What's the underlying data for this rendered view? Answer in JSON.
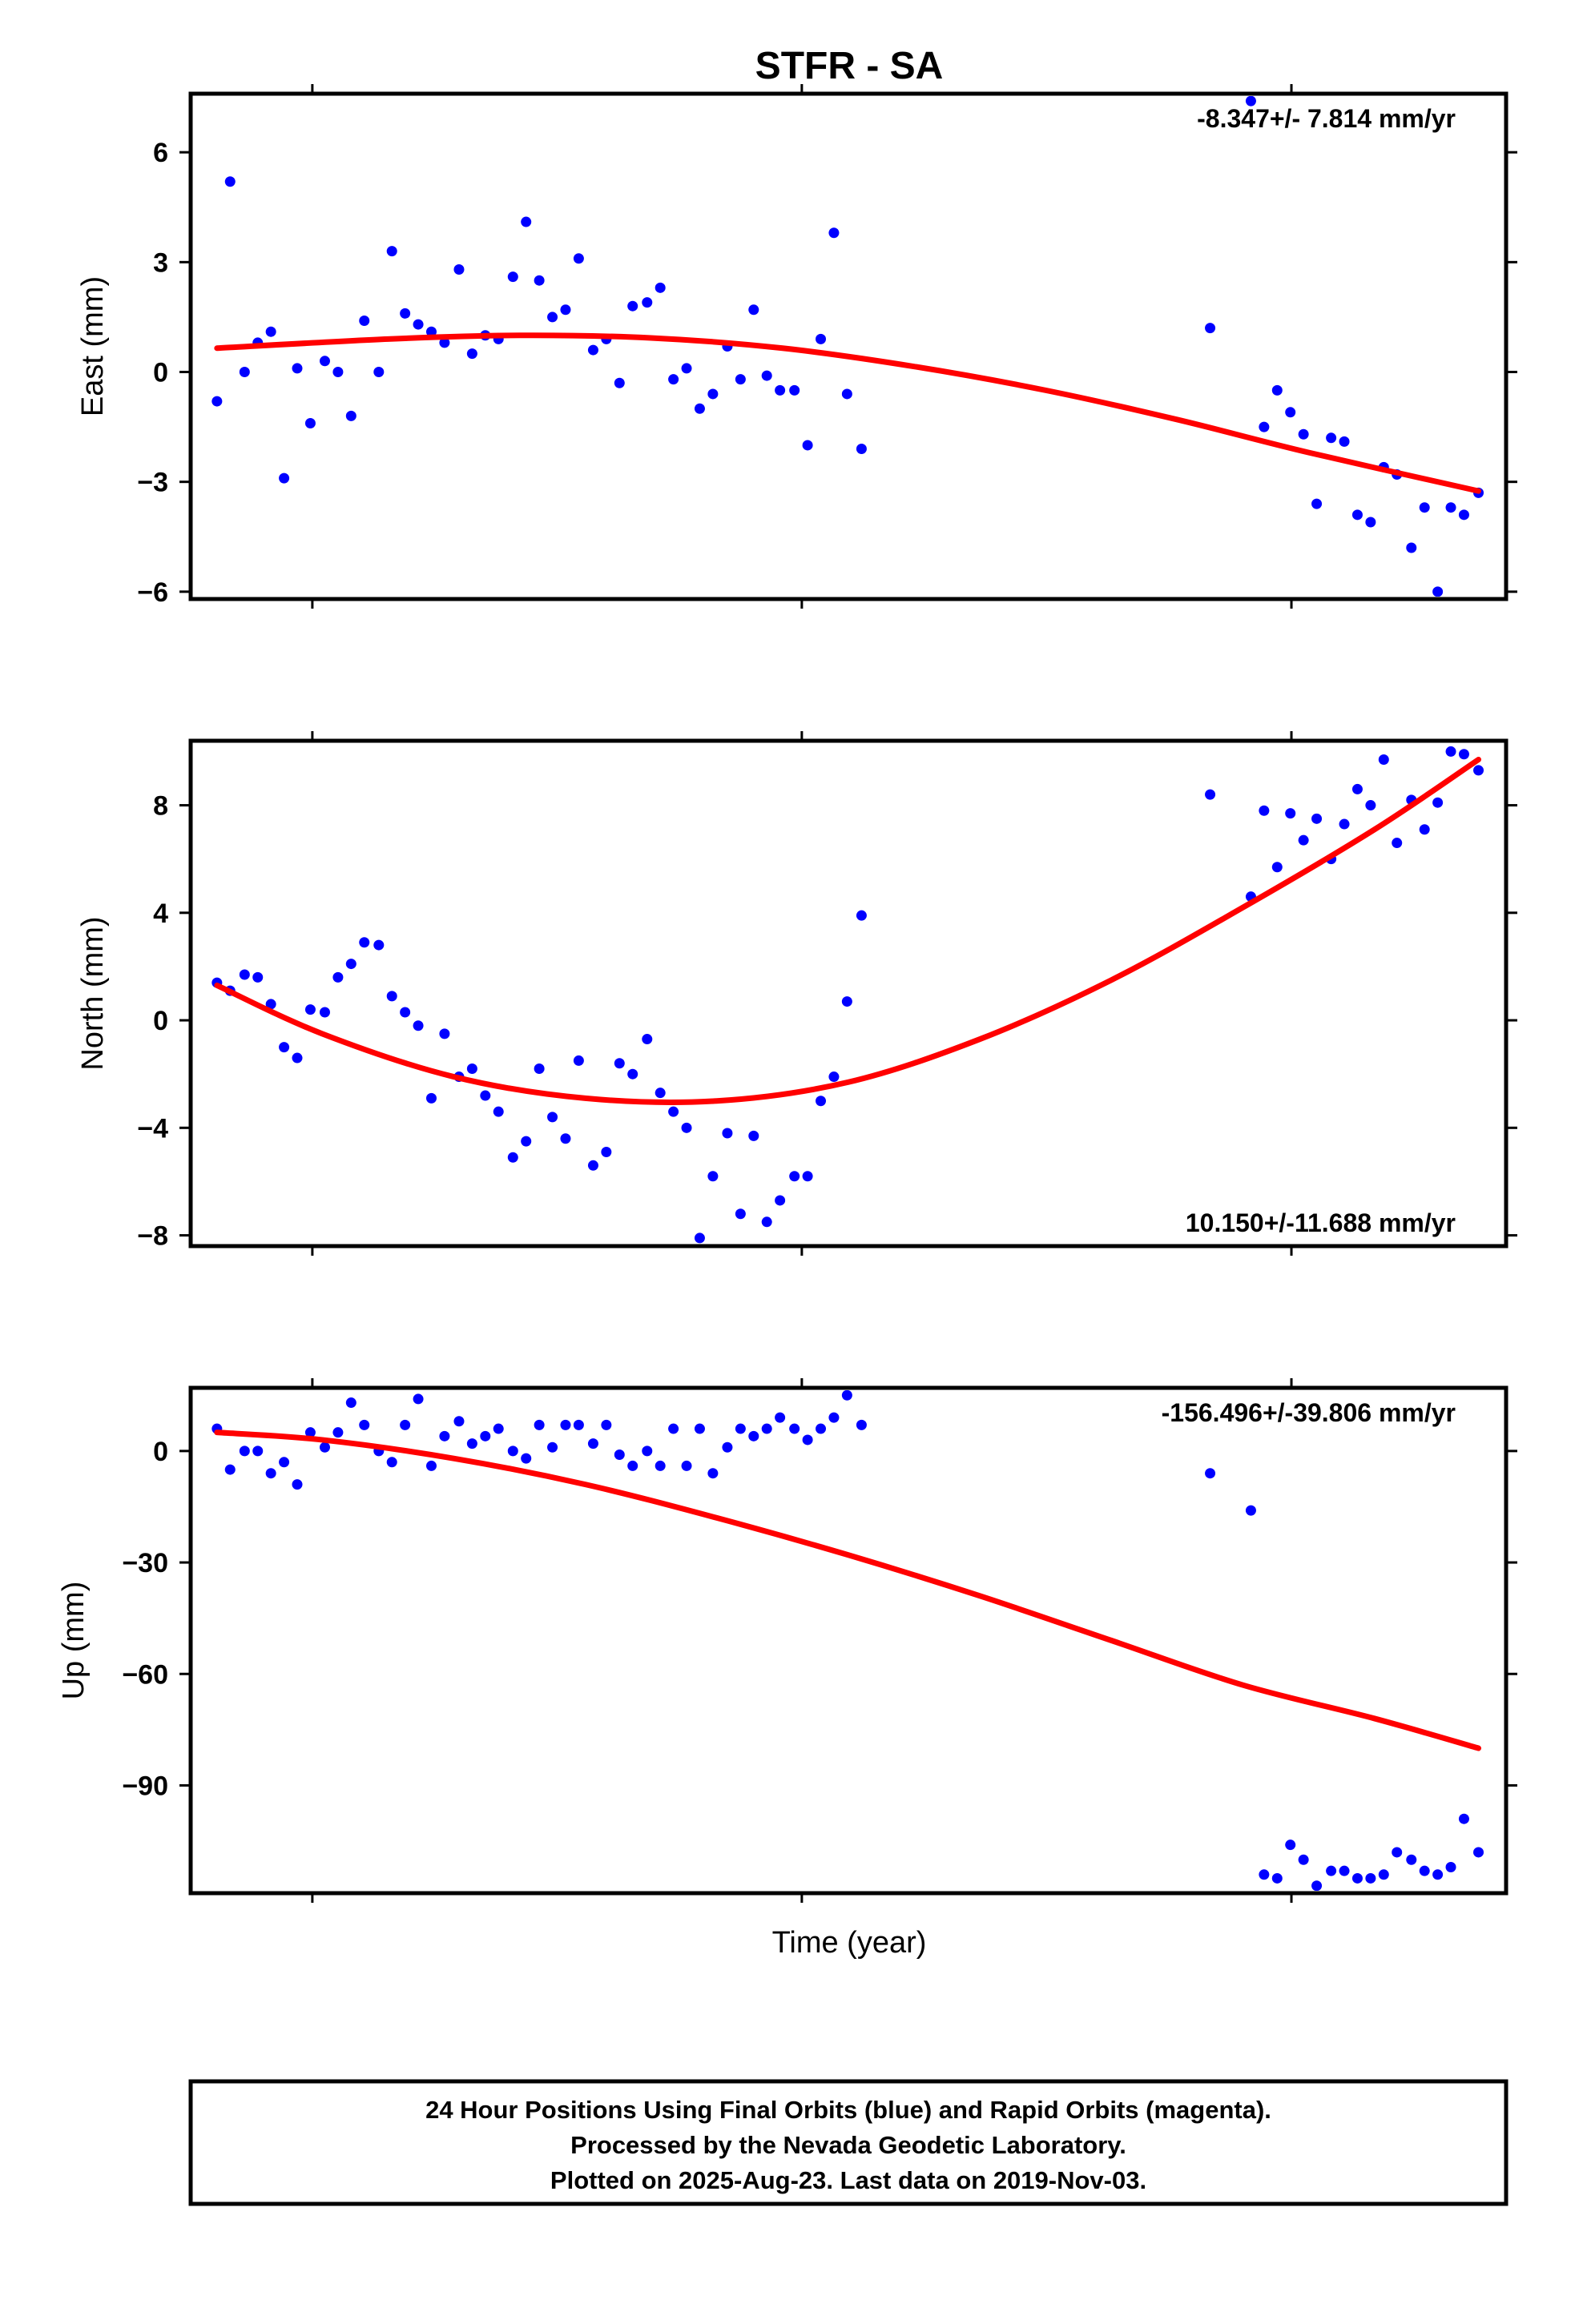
{
  "chart_data": {
    "type": "scatter",
    "title": "STFR - SA",
    "xlabel": "Time (year)",
    "panels": [
      {
        "id": "east",
        "ylabel": "East (mm)",
        "rate": "-8.347+/- 7.814 mm/yr",
        "rate_position": "top-right",
        "ylim": [
          -6.2,
          7.6
        ],
        "yticks": [
          6,
          3,
          0,
          -3,
          -6
        ],
        "ytick_labels": [
          "6",
          "3",
          "0",
          "−3",
          "−6"
        ],
        "points": [
          [
            0.02,
            -0.8
          ],
          [
            0.03,
            5.2
          ],
          [
            0.041,
            0.0
          ],
          [
            0.051,
            0.8
          ],
          [
            0.061,
            1.1
          ],
          [
            0.071,
            -2.9
          ],
          [
            0.081,
            0.1
          ],
          [
            0.091,
            -1.4
          ],
          [
            0.102,
            0.3
          ],
          [
            0.112,
            0.0
          ],
          [
            0.122,
            -1.2
          ],
          [
            0.132,
            1.4
          ],
          [
            0.143,
            0.0
          ],
          [
            0.153,
            3.3
          ],
          [
            0.163,
            1.6
          ],
          [
            0.173,
            1.3
          ],
          [
            0.183,
            1.1
          ],
          [
            0.193,
            0.8
          ],
          [
            0.204,
            2.8
          ],
          [
            0.214,
            0.5
          ],
          [
            0.224,
            1.0
          ],
          [
            0.234,
            0.9
          ],
          [
            0.245,
            2.6
          ],
          [
            0.255,
            4.1
          ],
          [
            0.265,
            2.5
          ],
          [
            0.275,
            1.5
          ],
          [
            0.285,
            1.7
          ],
          [
            0.295,
            3.1
          ],
          [
            0.306,
            0.6
          ],
          [
            0.316,
            0.9
          ],
          [
            0.326,
            -0.3
          ],
          [
            0.336,
            1.8
          ],
          [
            0.347,
            1.9
          ],
          [
            0.357,
            2.3
          ],
          [
            0.367,
            -0.2
          ],
          [
            0.377,
            0.1
          ],
          [
            0.387,
            -1.0
          ],
          [
            0.397,
            -0.6
          ],
          [
            0.408,
            0.7
          ],
          [
            0.418,
            -0.2
          ],
          [
            0.428,
            1.7
          ],
          [
            0.438,
            -0.1
          ],
          [
            0.448,
            -0.5
          ],
          [
            0.459,
            -0.5
          ],
          [
            0.469,
            -2.0
          ],
          [
            0.479,
            0.9
          ],
          [
            0.489,
            3.8
          ],
          [
            0.499,
            -0.6
          ],
          [
            0.51,
            -2.1
          ],
          [
            0.775,
            1.2
          ],
          [
            0.806,
            7.4
          ],
          [
            0.816,
            -1.5
          ],
          [
            0.826,
            -0.5
          ],
          [
            0.836,
            -1.1
          ],
          [
            0.846,
            -1.7
          ],
          [
            0.856,
            -3.6
          ],
          [
            0.867,
            -1.8
          ],
          [
            0.877,
            -1.9
          ],
          [
            0.887,
            -3.9
          ],
          [
            0.897,
            -4.1
          ],
          [
            0.907,
            -2.6
          ],
          [
            0.917,
            -2.8
          ],
          [
            0.928,
            -4.8
          ],
          [
            0.938,
            -3.7
          ],
          [
            0.948,
            -6.0
          ],
          [
            0.958,
            -3.7
          ],
          [
            0.968,
            -3.9
          ],
          [
            0.979,
            -3.3
          ]
        ],
        "trend": [
          [
            0.02,
            0.65
          ],
          [
            0.15,
            0.9
          ],
          [
            0.25,
            1.0
          ],
          [
            0.35,
            0.93
          ],
          [
            0.45,
            0.65
          ],
          [
            0.55,
            0.15
          ],
          [
            0.65,
            -0.5
          ],
          [
            0.75,
            -1.3
          ],
          [
            0.85,
            -2.2
          ],
          [
            0.979,
            -3.25
          ]
        ]
      },
      {
        "id": "north",
        "ylabel": "North (mm)",
        "rate": "10.150+/-11.688 mm/yr",
        "rate_position": "bottom-right",
        "ylim": [
          -8.4,
          10.4
        ],
        "yticks": [
          8,
          4,
          0,
          -4,
          -8
        ],
        "ytick_labels": [
          "8",
          "4",
          "0",
          "−4",
          "−8"
        ],
        "points": [
          [
            0.02,
            1.4
          ],
          [
            0.03,
            1.1
          ],
          [
            0.041,
            1.7
          ],
          [
            0.051,
            1.6
          ],
          [
            0.061,
            0.6
          ],
          [
            0.071,
            -1.0
          ],
          [
            0.081,
            -1.4
          ],
          [
            0.091,
            0.4
          ],
          [
            0.102,
            0.3
          ],
          [
            0.112,
            1.6
          ],
          [
            0.122,
            2.1
          ],
          [
            0.132,
            2.9
          ],
          [
            0.143,
            2.8
          ],
          [
            0.153,
            0.9
          ],
          [
            0.163,
            0.3
          ],
          [
            0.173,
            -0.2
          ],
          [
            0.183,
            -2.9
          ],
          [
            0.193,
            -0.5
          ],
          [
            0.204,
            -2.1
          ],
          [
            0.214,
            -1.8
          ],
          [
            0.224,
            -2.8
          ],
          [
            0.234,
            -3.4
          ],
          [
            0.245,
            -5.1
          ],
          [
            0.255,
            -4.5
          ],
          [
            0.265,
            -1.8
          ],
          [
            0.275,
            -3.6
          ],
          [
            0.285,
            -4.4
          ],
          [
            0.295,
            -1.5
          ],
          [
            0.306,
            -5.4
          ],
          [
            0.316,
            -4.9
          ],
          [
            0.326,
            -1.6
          ],
          [
            0.336,
            -2.0
          ],
          [
            0.347,
            -0.7
          ],
          [
            0.357,
            -2.7
          ],
          [
            0.367,
            -3.4
          ],
          [
            0.377,
            -4.0
          ],
          [
            0.387,
            -8.1
          ],
          [
            0.397,
            -5.8
          ],
          [
            0.408,
            -4.2
          ],
          [
            0.418,
            -7.2
          ],
          [
            0.428,
            -4.3
          ],
          [
            0.438,
            -7.5
          ],
          [
            0.448,
            -6.7
          ],
          [
            0.459,
            -5.8
          ],
          [
            0.469,
            -5.8
          ],
          [
            0.479,
            -3.0
          ],
          [
            0.489,
            -2.1
          ],
          [
            0.499,
            0.7
          ],
          [
            0.51,
            3.9
          ],
          [
            0.775,
            8.4
          ],
          [
            0.806,
            4.6
          ],
          [
            0.816,
            7.8
          ],
          [
            0.826,
            5.7
          ],
          [
            0.836,
            7.7
          ],
          [
            0.846,
            6.7
          ],
          [
            0.856,
            7.5
          ],
          [
            0.867,
            6.0
          ],
          [
            0.877,
            7.3
          ],
          [
            0.887,
            8.6
          ],
          [
            0.897,
            8.0
          ],
          [
            0.907,
            9.7
          ],
          [
            0.917,
            6.6
          ],
          [
            0.928,
            8.2
          ],
          [
            0.938,
            7.1
          ],
          [
            0.948,
            8.1
          ],
          [
            0.958,
            10.0
          ],
          [
            0.968,
            9.9
          ],
          [
            0.979,
            9.3
          ]
        ],
        "trend": [
          [
            0.02,
            1.3
          ],
          [
            0.1,
            -0.5
          ],
          [
            0.2,
            -2.1
          ],
          [
            0.3,
            -2.9
          ],
          [
            0.4,
            -3.0
          ],
          [
            0.5,
            -2.3
          ],
          [
            0.6,
            -0.7
          ],
          [
            0.7,
            1.5
          ],
          [
            0.8,
            4.2
          ],
          [
            0.9,
            7.1
          ],
          [
            0.979,
            9.7
          ]
        ]
      },
      {
        "id": "up",
        "ylabel": "Up (mm)",
        "rate": "-156.496+/-39.806 mm/yr",
        "rate_position": "top-right",
        "ylim": [
          -119,
          17
        ],
        "yticks": [
          0,
          -30,
          -60,
          -90
        ],
        "ytick_labels": [
          "0",
          "−30",
          "−60",
          "−90"
        ],
        "points": [
          [
            0.02,
            6
          ],
          [
            0.03,
            -5
          ],
          [
            0.041,
            0
          ],
          [
            0.051,
            0
          ],
          [
            0.061,
            -6
          ],
          [
            0.071,
            -3
          ],
          [
            0.081,
            -9
          ],
          [
            0.091,
            5
          ],
          [
            0.102,
            1
          ],
          [
            0.112,
            5
          ],
          [
            0.122,
            13
          ],
          [
            0.132,
            7
          ],
          [
            0.143,
            0
          ],
          [
            0.153,
            -3
          ],
          [
            0.163,
            7
          ],
          [
            0.173,
            14
          ],
          [
            0.183,
            -4
          ],
          [
            0.193,
            4
          ],
          [
            0.204,
            8
          ],
          [
            0.214,
            2
          ],
          [
            0.224,
            4
          ],
          [
            0.234,
            6
          ],
          [
            0.245,
            0
          ],
          [
            0.255,
            -2
          ],
          [
            0.265,
            7
          ],
          [
            0.275,
            1
          ],
          [
            0.285,
            7
          ],
          [
            0.295,
            7
          ],
          [
            0.306,
            2
          ],
          [
            0.316,
            7
          ],
          [
            0.326,
            -1
          ],
          [
            0.336,
            -4
          ],
          [
            0.347,
            0
          ],
          [
            0.357,
            -4
          ],
          [
            0.367,
            6
          ],
          [
            0.377,
            -4
          ],
          [
            0.387,
            6
          ],
          [
            0.397,
            -6
          ],
          [
            0.408,
            1
          ],
          [
            0.418,
            6
          ],
          [
            0.428,
            4
          ],
          [
            0.438,
            6
          ],
          [
            0.448,
            9
          ],
          [
            0.459,
            6
          ],
          [
            0.469,
            3
          ],
          [
            0.479,
            6
          ],
          [
            0.489,
            9
          ],
          [
            0.499,
            15
          ],
          [
            0.51,
            7
          ],
          [
            0.775,
            -6
          ],
          [
            0.806,
            -16
          ],
          [
            0.816,
            -114
          ],
          [
            0.826,
            -115
          ],
          [
            0.836,
            -106
          ],
          [
            0.846,
            -110
          ],
          [
            0.856,
            -117
          ],
          [
            0.867,
            -113
          ],
          [
            0.877,
            -113
          ],
          [
            0.887,
            -115
          ],
          [
            0.897,
            -115
          ],
          [
            0.907,
            -114
          ],
          [
            0.917,
            -108
          ],
          [
            0.928,
            -110
          ],
          [
            0.938,
            -113
          ],
          [
            0.948,
            -114
          ],
          [
            0.958,
            -112
          ],
          [
            0.968,
            -99
          ],
          [
            0.979,
            -108
          ]
        ],
        "trend": [
          [
            0.02,
            5
          ],
          [
            0.1,
            3
          ],
          [
            0.2,
            -2
          ],
          [
            0.3,
            -9
          ],
          [
            0.4,
            -18
          ],
          [
            0.5,
            -28
          ],
          [
            0.6,
            -39
          ],
          [
            0.7,
            -51
          ],
          [
            0.8,
            -63
          ],
          [
            0.9,
            -72
          ],
          [
            0.979,
            -80
          ]
        ]
      }
    ],
    "colors": {
      "points": "#0000ff",
      "trend": "#ff0000",
      "frame": "#000000"
    }
  },
  "footer": {
    "line1": "24 Hour Positions Using Final Orbits (blue) and Rapid Orbits (magenta).",
    "line2": "Processed by the Nevada Geodetic Laboratory.",
    "line3": "Plotted on 2025-Aug-23. Last data on 2019-Nov-03."
  }
}
